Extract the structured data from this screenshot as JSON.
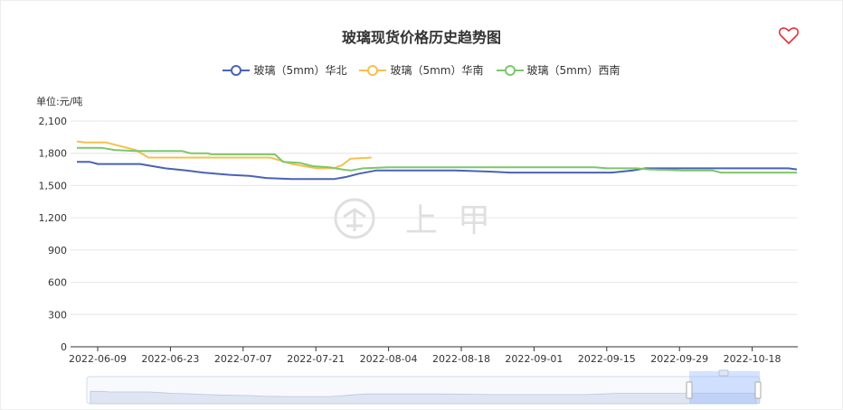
{
  "page": {
    "favorite_icon": "heart-outline-icon",
    "watermark": "上甲"
  },
  "chart_data": {
    "type": "line",
    "title": "玻璃现货价格历史趋势图",
    "unit_label": "单位:元/吨",
    "y_ticks": [
      "0",
      "300",
      "600",
      "900",
      "1,200",
      "1,500",
      "1,800",
      "2,100"
    ],
    "ylim": [
      0,
      2100
    ],
    "x_ticks": [
      "2022-06-09",
      "2022-06-23",
      "2022-07-07",
      "2022-07-21",
      "2022-08-04",
      "2022-08-18",
      "2022-09-01",
      "2022-09-15",
      "2022-09-29",
      "2022-10-18"
    ],
    "legend_position": "top-center",
    "grid": true,
    "series": [
      {
        "name": "玻璃（5mm）华北",
        "color": "#4a62b8",
        "points": [
          [
            0,
            1720
          ],
          [
            3,
            1720
          ],
          [
            5,
            1700
          ],
          [
            15,
            1700
          ],
          [
            18,
            1680
          ],
          [
            21,
            1660
          ],
          [
            26,
            1640
          ],
          [
            30,
            1620
          ],
          [
            36,
            1600
          ],
          [
            41,
            1590
          ],
          [
            45,
            1570
          ],
          [
            51,
            1560
          ],
          [
            61,
            1560
          ],
          [
            64,
            1580
          ],
          [
            67,
            1610
          ],
          [
            71,
            1640
          ],
          [
            90,
            1640
          ],
          [
            98,
            1630
          ],
          [
            103,
            1620
          ],
          [
            127,
            1620
          ],
          [
            132,
            1640
          ],
          [
            135,
            1660
          ],
          [
            169,
            1660
          ],
          [
            171,
            1650
          ]
        ]
      },
      {
        "name": "玻璃（5mm）华南",
        "color": "#f5c04e",
        "points": [
          [
            0,
            1910
          ],
          [
            2,
            1900
          ],
          [
            7,
            1900
          ],
          [
            11,
            1860
          ],
          [
            14,
            1830
          ],
          [
            17,
            1760
          ],
          [
            46,
            1760
          ],
          [
            51,
            1700
          ],
          [
            57,
            1660
          ],
          [
            61,
            1660
          ],
          [
            63,
            1690
          ],
          [
            65,
            1750
          ],
          [
            70,
            1760
          ]
        ]
      },
      {
        "name": "玻璃（5mm）西南",
        "color": "#7cc76a",
        "points": [
          [
            0,
            1850
          ],
          [
            6,
            1850
          ],
          [
            9,
            1830
          ],
          [
            14,
            1820
          ],
          [
            25,
            1820
          ],
          [
            27,
            1800
          ],
          [
            31,
            1800
          ],
          [
            32,
            1790
          ],
          [
            47,
            1790
          ],
          [
            49,
            1720
          ],
          [
            53,
            1710
          ],
          [
            56,
            1680
          ],
          [
            60,
            1670
          ],
          [
            63,
            1650
          ],
          [
            65,
            1640
          ],
          [
            68,
            1660
          ],
          [
            74,
            1670
          ],
          [
            123,
            1670
          ],
          [
            126,
            1660
          ],
          [
            133,
            1660
          ],
          [
            136,
            1650
          ],
          [
            144,
            1640
          ],
          [
            151,
            1640
          ],
          [
            153,
            1620
          ],
          [
            171,
            1620
          ]
        ]
      }
    ]
  }
}
